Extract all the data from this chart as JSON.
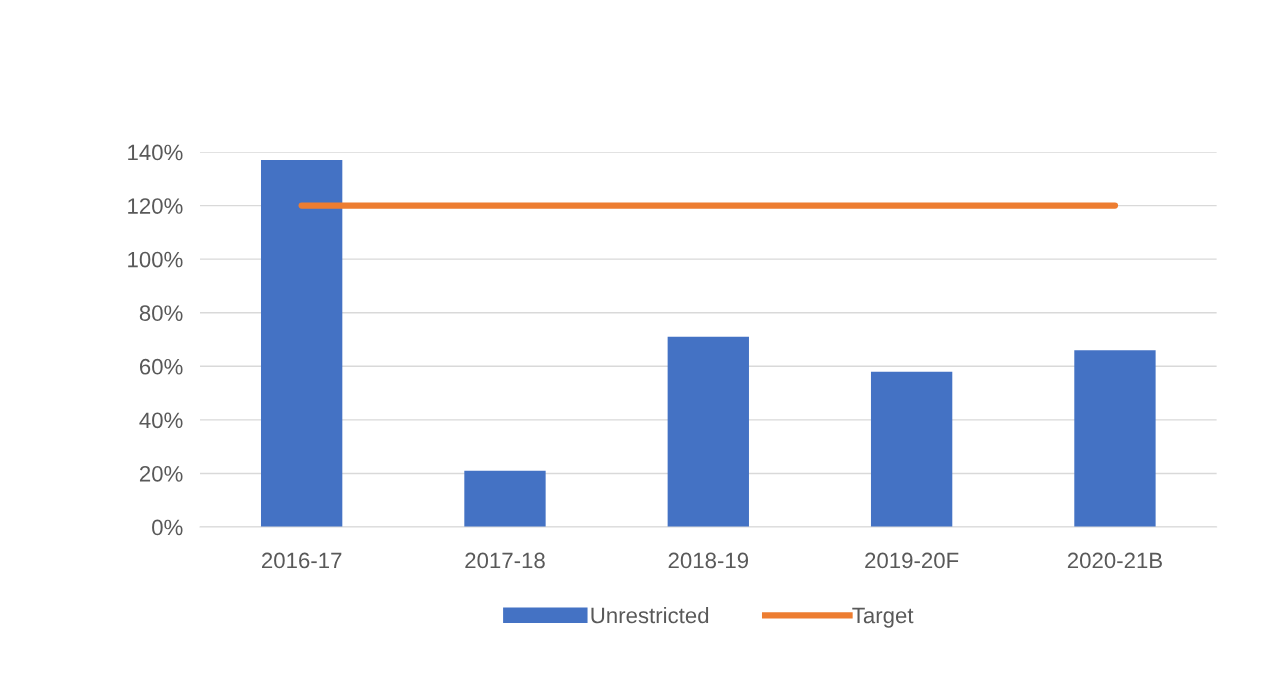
{
  "chart_data": {
    "type": "bar",
    "categories": [
      "2016-17",
      "2017-18",
      "2018-19",
      "2019-20F",
      "2020-21B"
    ],
    "series": [
      {
        "name": "Unrestricted",
        "color": "#4472c4",
        "values": [
          137,
          21,
          71,
          58,
          66
        ]
      },
      {
        "name": "Target",
        "type": "line",
        "color": "#ed7d31",
        "values": [
          120,
          120,
          120,
          120,
          120
        ]
      }
    ],
    "ylim": [
      0,
      140
    ],
    "yticks": [
      {
        "value": 0,
        "label": "0%"
      },
      {
        "value": 20,
        "label": "20%"
      },
      {
        "value": 40,
        "label": "40%"
      },
      {
        "value": 60,
        "label": "60%"
      },
      {
        "value": 80,
        "label": "80%"
      },
      {
        "value": 100,
        "label": "100%"
      },
      {
        "value": 120,
        "label": "120%"
      },
      {
        "value": 140,
        "label": "140%"
      }
    ],
    "grid": "y",
    "legend": "bottom",
    "marker": "none",
    "line_style": "solid"
  }
}
